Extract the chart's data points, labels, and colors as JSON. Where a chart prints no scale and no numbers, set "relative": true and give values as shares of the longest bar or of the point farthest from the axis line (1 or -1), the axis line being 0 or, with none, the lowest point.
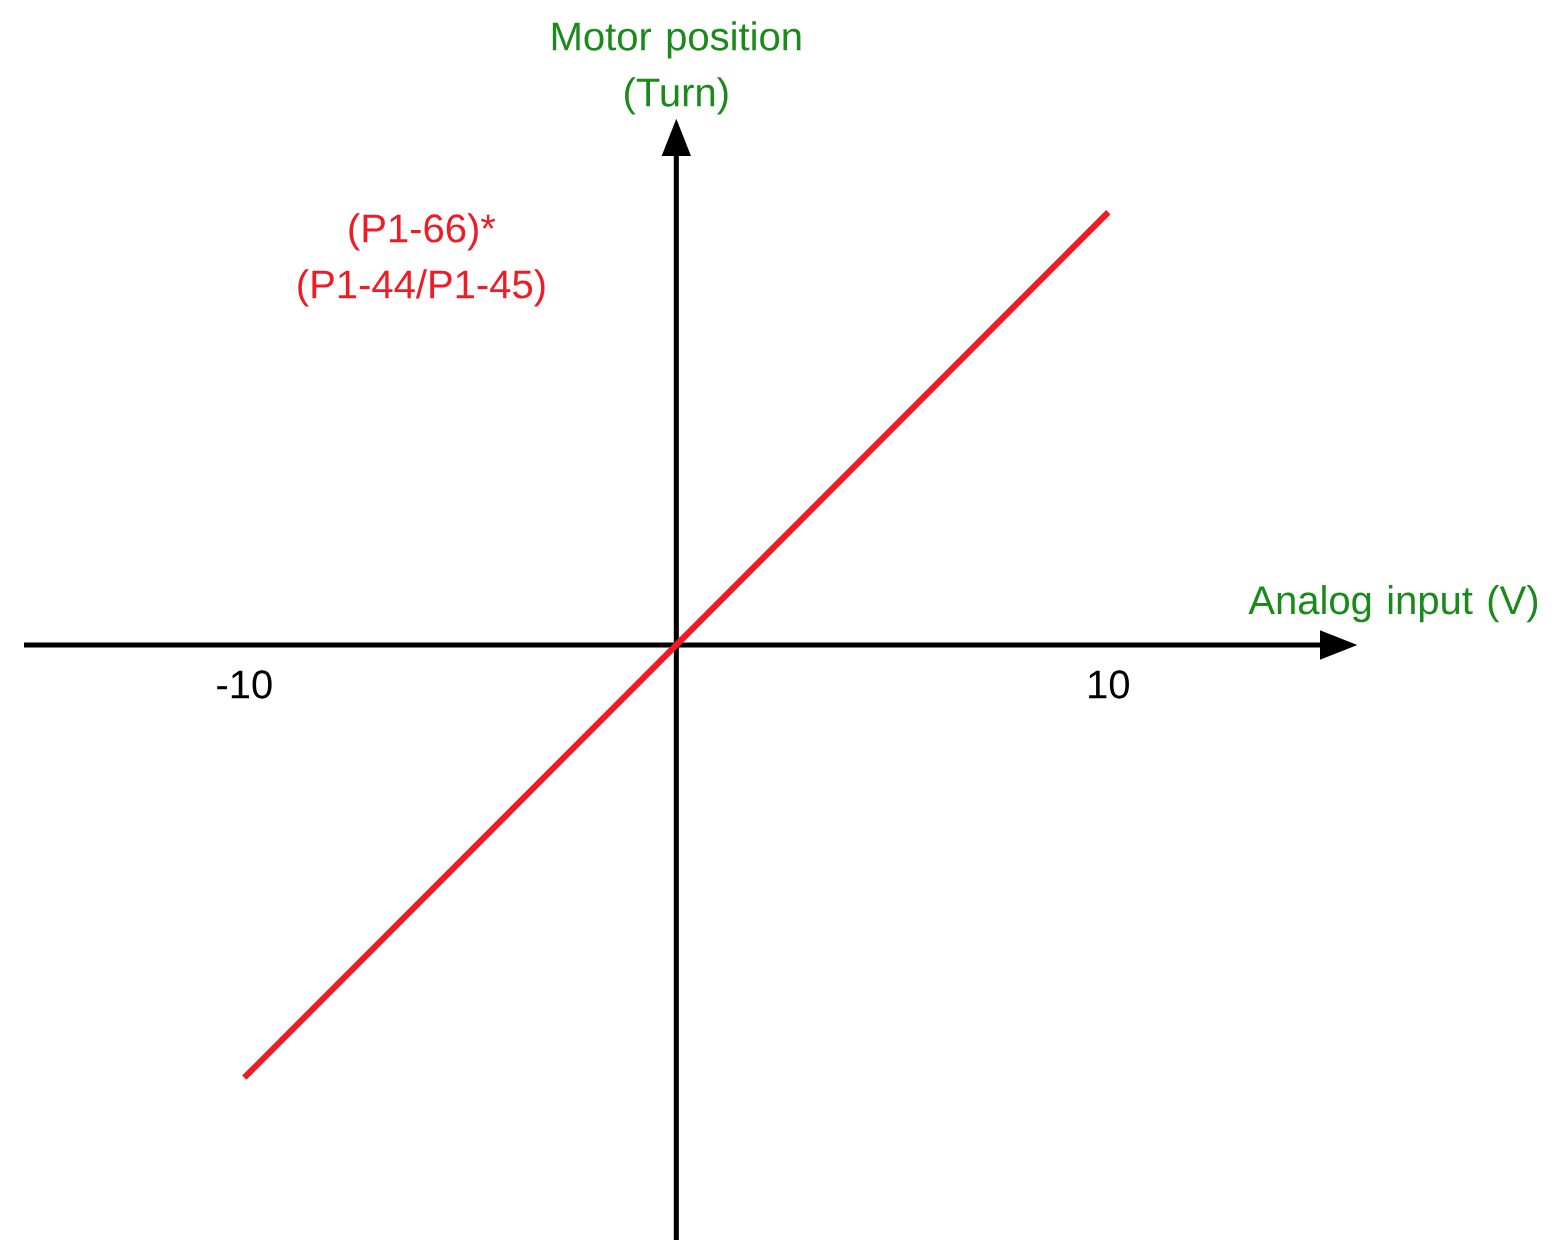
{
  "chart_data": {
    "type": "line",
    "relative": true,
    "xlabel": "Analog input (V)",
    "ylabel": "Motor position (Turn)",
    "x": [
      -10,
      0,
      10
    ],
    "xlim": [
      -15.1,
      14.9
    ],
    "xticks": [
      -10,
      10
    ],
    "series": [
      {
        "name": "(P1-66)* (P1-44/P1-45)",
        "color": "#ee1c24",
        "values": [
          -1,
          0,
          1
        ]
      }
    ]
  }
}
